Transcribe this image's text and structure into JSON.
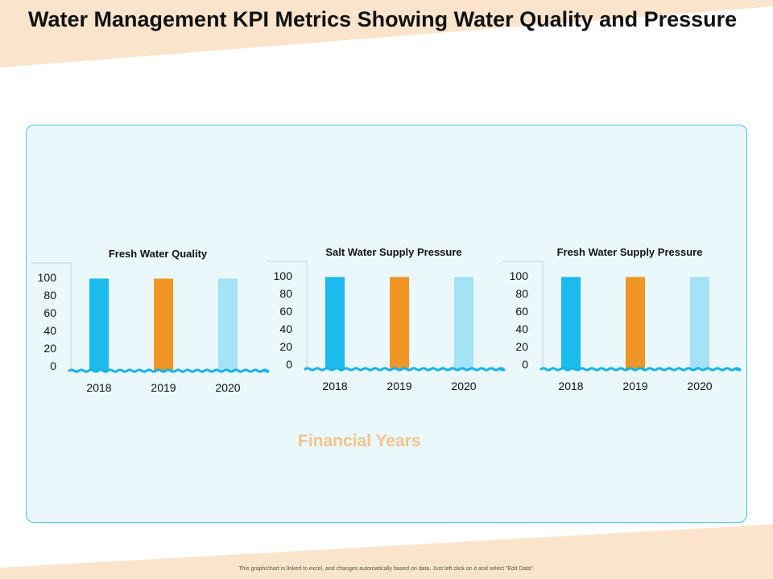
{
  "title": "Water Management KPI Metrics Showing Water Quality and Pressure",
  "x_caption": "Financial Years",
  "footnote": "This graph/chart is linked to excel, and changes automatically based on data. Just left click on it and select \"Edit Data\".",
  "colors": {
    "panel_bg": "#eaf7fb",
    "panel_border": "#44c3e6",
    "accent_band": "#fbe4cc",
    "wave": "#16b3e6",
    "caption": "#f2c48c"
  },
  "chart_data": [
    {
      "type": "bar",
      "title": "Fresh Water Quality",
      "categories": [
        "2018",
        "2019",
        "2020"
      ],
      "values": [
        105,
        105,
        105
      ],
      "colors": [
        "#1bbbee",
        "#ef9626",
        "#a4e2f6"
      ],
      "yticks": [
        "0",
        "20",
        "40",
        "60",
        "80",
        "100"
      ],
      "ylim": [
        0,
        110
      ],
      "grid": false
    },
    {
      "type": "bar",
      "title": "Salt Water Supply Pressure",
      "categories": [
        "2018",
        "2019",
        "2020"
      ],
      "values": [
        105,
        105,
        105
      ],
      "colors": [
        "#1bbbee",
        "#ef9626",
        "#a4e2f6"
      ],
      "yticks": [
        "0",
        "20",
        "40",
        "60",
        "80",
        "100"
      ],
      "ylim": [
        0,
        110
      ],
      "grid": false
    },
    {
      "type": "bar",
      "title": "Fresh Water Supply Pressure",
      "categories": [
        "2018",
        "2019",
        "2020"
      ],
      "values": [
        105,
        105,
        105
      ],
      "colors": [
        "#1bbbee",
        "#ef9626",
        "#a4e2f6"
      ],
      "yticks": [
        "0",
        "20",
        "40",
        "60",
        "80",
        "100"
      ],
      "ylim": [
        0,
        110
      ],
      "grid": false
    }
  ]
}
